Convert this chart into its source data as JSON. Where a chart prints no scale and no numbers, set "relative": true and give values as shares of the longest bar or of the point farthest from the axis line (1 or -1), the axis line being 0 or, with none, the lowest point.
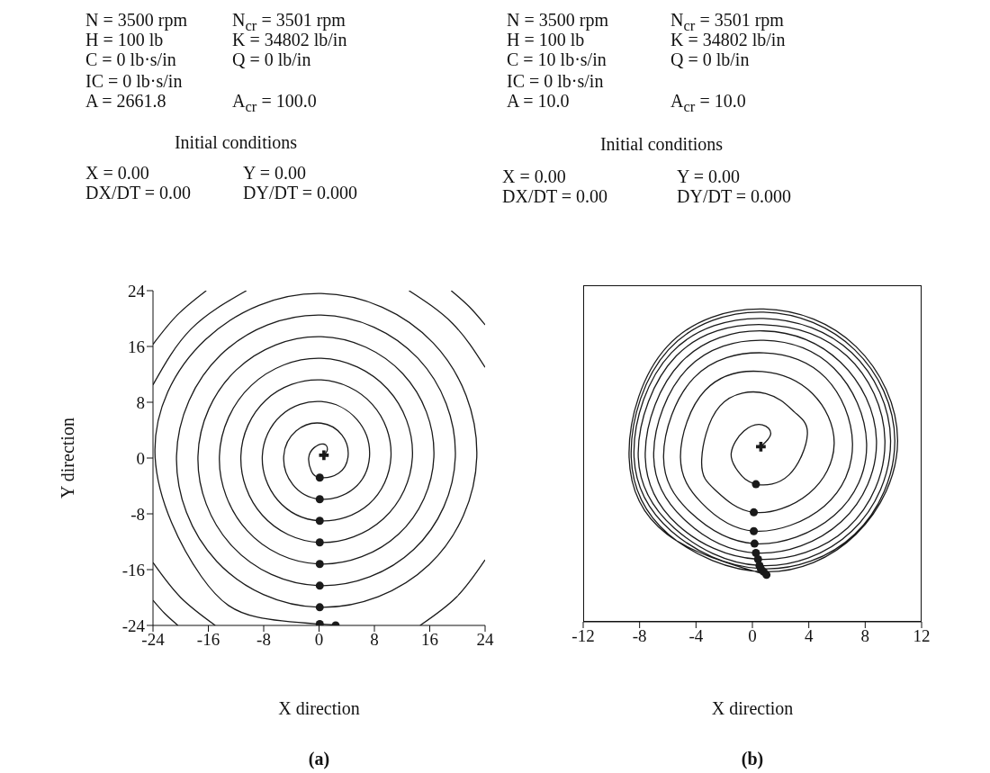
{
  "chart_data": [
    {
      "type": "line",
      "title": "(a)",
      "xlabel": "X direction",
      "ylabel": "Y direction",
      "annotations": [
        "N = 3500 rpm",
        "N$_{cr}$ = 3501 rpm",
        "H = 100 lb",
        "K = 34802 lb/in",
        "C = 0 lb·s/in",
        "Q = 0 lb/in",
        "IC = 0 lb·s/in",
        "A = 2661.8",
        "A$_{cr}$ = 100.0",
        "Initial conditions",
        "X = 0.00",
        "Y = 0.00",
        "DX/DT = 0.00",
        "DY/DT = 0.000"
      ],
      "xlim": [
        -24,
        24
      ],
      "ylim": [
        -24,
        24
      ],
      "xticks": [
        -24,
        -16,
        -8,
        0,
        8,
        16,
        24
      ],
      "yticks": [
        -24,
        -16,
        -8,
        0,
        8,
        16,
        24
      ],
      "series": [
        {
          "type": "line",
          "color": "#1a1a1a",
          "x": [
            0.7,
            1.2,
            0.7,
            -0.7,
            -1.5,
            -1.1,
            0.1,
            2.8,
            4.2,
            3.3,
            0.3,
            -3.3,
            -5.1,
            -3.8,
            0.1,
            5.0,
            7.3,
            5.5,
            0.3,
            -5.5,
            -8.2,
            -6.0,
            0.1,
            7.2,
            10.4,
            7.7,
            0.3,
            -7.7,
            -11.3,
            -8.2,
            0.1,
            9.3,
            13.5,
            9.9,
            0.3,
            -9.8,
            -14.4,
            -10.4,
            0.1,
            11.5,
            16.6,
            12.1,
            0.3,
            -12.0,
            -17.5,
            -12.6,
            0.1,
            13.7,
            19.7,
            14.3,
            0.3,
            -14.2,
            -20.6,
            -14.8,
            0.1,
            15.9,
            22.8,
            16.5,
            0.3,
            -16.4,
            -23.7,
            -17.0,
            -9,
            0.1,
            2.4,
            null,
            14.6,
            19.9,
            24,
            null,
            24,
            19.3,
            13.0,
            null,
            -10.5,
            -18.5,
            -24,
            null,
            -24,
            -20.0,
            -15.0,
            null,
            24,
            21.7,
            19.1,
            null,
            -16.3,
            -20.5,
            -24,
            null,
            -24,
            -22.3,
            -20.4
          ],
          "values": [
            0.4,
            1.2,
            2.0,
            1.5,
            0,
            -1.9,
            -2.8,
            -2.2,
            0.3,
            3.3,
            5.0,
            3.9,
            0.3,
            -3.8,
            -5.9,
            -4.4,
            0.3,
            5.5,
            8.1,
            6.1,
            0.3,
            -6.0,
            -9.0,
            -6.6,
            0.3,
            7.7,
            11.2,
            8.3,
            0.3,
            -8.2,
            -12.1,
            -8.7,
            0.3,
            9.9,
            14.3,
            10.4,
            0.3,
            -10.4,
            -15.2,
            -10.9,
            0.3,
            12.1,
            17.4,
            12.6,
            0.3,
            -12.6,
            -18.3,
            -13.1,
            0.3,
            14.3,
            20.5,
            14.8,
            0.3,
            -14.8,
            -21.4,
            -15.3,
            0.3,
            16.5,
            23.6,
            17.0,
            0.3,
            -17.0,
            -22.8,
            -23.8,
            -24,
            null,
            -24,
            -19.9,
            -14.6,
            null,
            13.0,
            19.3,
            24,
            null,
            24,
            18.5,
            10.5,
            null,
            -15.0,
            -20.0,
            -24,
            null,
            19.1,
            21.7,
            24,
            null,
            24,
            20.5,
            16.3,
            null,
            -20.4,
            -22.3,
            -24
          ]
        },
        {
          "type": "scatter",
          "marker": "circle",
          "color": "#1a1a1a",
          "x": [
            0.1,
            0.1,
            0.1,
            0.1,
            0.1,
            0.1,
            0.1,
            0.1,
            2.4
          ],
          "values": [
            -2.8,
            -5.9,
            -9.0,
            -12.1,
            -15.2,
            -18.3,
            -21.4,
            -23.8,
            -24
          ]
        },
        {
          "type": "scatter",
          "marker": "cross",
          "color": "#1a1a1a",
          "x": [
            0.7
          ],
          "values": [
            0.4
          ]
        }
      ]
    },
    {
      "type": "line",
      "title": "(b)",
      "xlabel": "X direction",
      "relative": true,
      "annotations": [
        "N = 3500 rpm",
        "N$_{cr}$ = 3501 rpm",
        "H = 100 lb",
        "K = 34802 lb/in",
        "C = 10 lb·s/in",
        "Q = 0 lb/in",
        "IC = 0 lb·s/in",
        "A = 10.0",
        "A$_{cr}$ = 10.0",
        "Initial conditions",
        "X = 0.00",
        "Y = 0.00",
        "DX/DT = 0.00",
        "DY/DT = 0.000"
      ],
      "xlim": [
        -12,
        12
      ],
      "xticks": [
        -12,
        -8,
        -4,
        0,
        4,
        8,
        12
      ],
      "series": [
        {
          "type": "line",
          "color": "#1a1a1a",
          "x": [
            0.6,
            1.3,
            0.7,
            -0.6,
            -1.5,
            -1.0,
            0.25,
            2.6,
            3.9,
            3.0,
            0.95,
            -2.3,
            -3.6,
            -2.6,
            0.1,
            4.0,
            5.8,
            4.25,
            0.7,
            -3.35,
            -5.1,
            -3.6,
            0.1,
            5.1,
            7.1,
            5.2,
            0.8,
            -4.15,
            -6.3,
            -4.4,
            0.15,
            5.8,
            8.1,
            5.8,
            0.8,
            -4.6,
            -7.0,
            -4.9,
            0.25,
            6.3,
            8.8,
            6.25,
            0.8,
            -5.05,
            -7.6,
            -5.3,
            0.4,
            6.75,
            9.4,
            6.7,
            0.8,
            -5.4,
            -8.1,
            -5.55,
            0.5,
            7.05,
            9.8,
            7.05,
            0.8,
            -5.75,
            -8.4,
            -5.75,
            0.6,
            7.25,
            10.1,
            7.25,
            0.8,
            -5.95,
            -8.6,
            -5.95,
            0.8,
            7.35,
            10.3,
            7.35,
            0.8,
            -6.05,
            -8.75,
            -6.05,
            1.0
          ],
          "values": [
            0.56,
            0.6,
            0.63,
            0.61,
            0.54,
            0.48,
            0.44,
            0.47,
            0.6,
            0.67,
            0.73,
            0.69,
            0.51,
            0.42,
            0.35,
            0.41,
            0.57,
            0.73,
            0.8,
            0.74,
            0.53,
            0.38,
            0.29,
            0.37,
            0.57,
            0.78,
            0.86,
            0.78,
            0.53,
            0.35,
            0.25,
            0.34,
            0.57,
            0.81,
            0.9,
            0.81,
            0.54,
            0.33,
            0.22,
            0.32,
            0.58,
            0.83,
            0.93,
            0.83,
            0.54,
            0.31,
            0.2,
            0.3,
            0.58,
            0.85,
            0.95,
            0.85,
            0.54,
            0.3,
            0.18,
            0.29,
            0.58,
            0.86,
            0.97,
            0.86,
            0.54,
            0.29,
            0.17,
            0.28,
            0.58,
            0.87,
            0.99,
            0.87,
            0.54,
            0.28,
            0.16,
            0.28,
            0.58,
            0.88,
            1.0,
            0.88,
            0.54,
            0.28,
            0.15
          ]
        },
        {
          "type": "scatter",
          "marker": "circle",
          "color": "#1a1a1a",
          "x": [
            0.25,
            0.1,
            0.1,
            0.15,
            0.25,
            0.4,
            0.5,
            0.6,
            0.8,
            1.0
          ],
          "values": [
            0.44,
            0.35,
            0.29,
            0.25,
            0.22,
            0.2,
            0.18,
            0.17,
            0.16,
            0.15
          ]
        },
        {
          "type": "scatter",
          "marker": "cross",
          "color": "#1a1a1a",
          "x": [
            0.6
          ],
          "values": [
            0.56
          ]
        }
      ]
    }
  ]
}
